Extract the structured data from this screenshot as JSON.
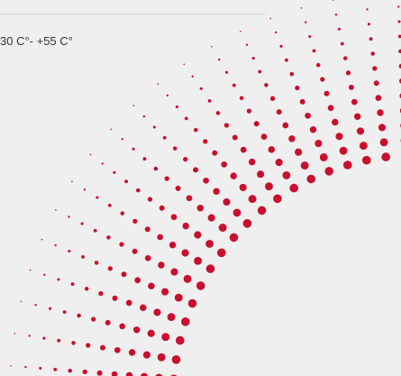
{
  "text": "30 C°- +55 C°"
}
